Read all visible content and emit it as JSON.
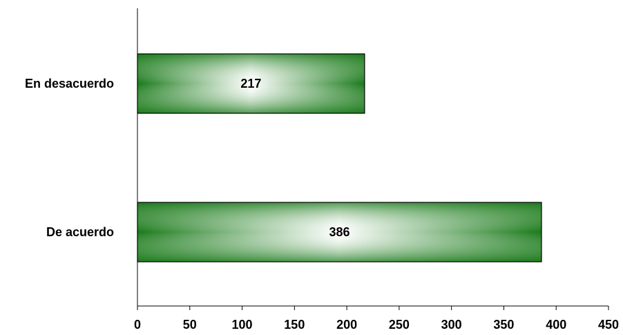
{
  "chart_data": {
    "type": "bar",
    "orientation": "horizontal",
    "categories": [
      "En desacuerdo",
      "De acuerdo"
    ],
    "values": [
      217,
      386
    ],
    "data_labels": [
      "217",
      "386"
    ],
    "title": "",
    "xlabel": "",
    "ylabel": "",
    "xlim": [
      0,
      450
    ],
    "xticks": [
      0,
      50,
      100,
      150,
      200,
      250,
      300,
      350,
      400,
      450
    ],
    "xtick_labels": [
      "0",
      "50",
      "100",
      "150",
      "200",
      "250",
      "300",
      "350",
      "400",
      "450"
    ],
    "grid": false,
    "legend": "none",
    "colors": {
      "bar_edge": "#1a7a1a",
      "bar_center": "#ffffff",
      "bar_outline": "#000000",
      "axis": "#000000"
    }
  }
}
